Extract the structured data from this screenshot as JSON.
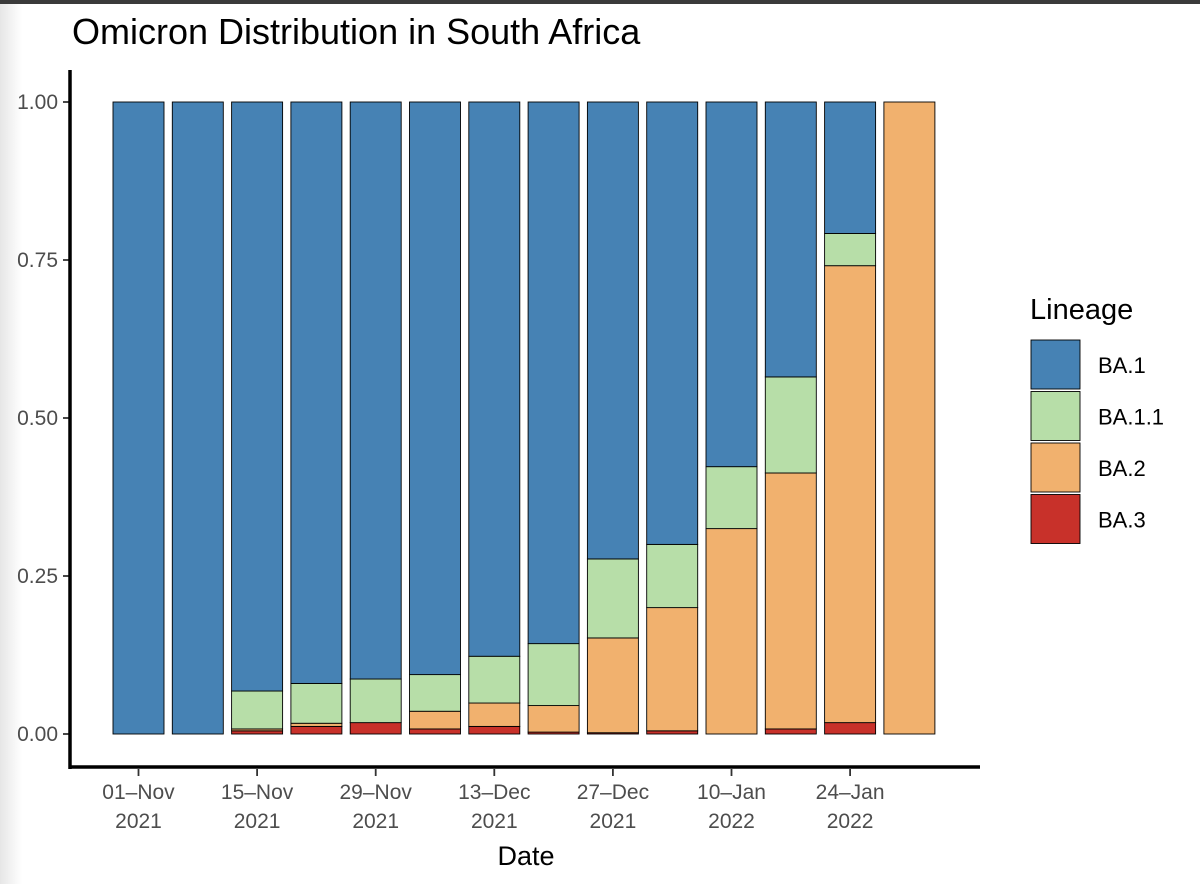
{
  "chart_data": {
    "type": "bar",
    "stacked": true,
    "title": "Omicron Distribution in South Africa",
    "xlabel": "Date",
    "ylabel": "",
    "ylim": [
      0,
      1
    ],
    "y_ticks": [
      "0.00",
      "0.25",
      "0.50",
      "0.75",
      "1.00"
    ],
    "y_tick_values": [
      0,
      0.25,
      0.5,
      0.75,
      1.0
    ],
    "x_tick_labels": [
      {
        "line1": "01–Nov",
        "line2": "2021",
        "category_index": 0
      },
      {
        "line1": "15–Nov",
        "line2": "2021",
        "category_index": 2
      },
      {
        "line1": "29–Nov",
        "line2": "2021",
        "category_index": 4
      },
      {
        "line1": "13–Dec",
        "line2": "2021",
        "category_index": 6
      },
      {
        "line1": "27–Dec",
        "line2": "2021",
        "category_index": 8
      },
      {
        "line1": "10–Jan",
        "line2": "2022",
        "category_index": 10
      },
      {
        "line1": "24–Jan",
        "line2": "2022",
        "category_index": 12
      }
    ],
    "categories": [
      "2021-11-01",
      "2021-11-08",
      "2021-11-15",
      "2021-11-22",
      "2021-11-29",
      "2021-12-06",
      "2021-12-13",
      "2021-12-20",
      "2021-12-27",
      "2022-01-03",
      "2022-01-10",
      "2022-01-17",
      "2022-01-24",
      "2022-01-31"
    ],
    "series": [
      {
        "name": "BA.3",
        "color": "#c8312a",
        "values": [
          0,
          0,
          0.005,
          0.012,
          0.018,
          0.008,
          0.012,
          0.003,
          0.002,
          0.005,
          0,
          0.008,
          0.018,
          0
        ]
      },
      {
        "name": "BA.2",
        "color": "#f1b16e",
        "values": [
          0,
          0,
          0.003,
          0.005,
          0,
          0.028,
          0.037,
          0.042,
          0.15,
          0.195,
          0.325,
          0.405,
          0.723,
          1.0
        ]
      },
      {
        "name": "BA.1.1",
        "color": "#b7dea8",
        "values": [
          0,
          0,
          0.06,
          0.063,
          0.069,
          0.058,
          0.074,
          0.098,
          0.125,
          0.1,
          0.098,
          0.152,
          0.051,
          0
        ]
      },
      {
        "name": "BA.1",
        "color": "#4682b4",
        "values": [
          1.0,
          1.0,
          0.932,
          0.92,
          0.913,
          0.906,
          0.877,
          0.857,
          0.723,
          0.7,
          0.577,
          0.435,
          0.208,
          0
        ]
      }
    ],
    "legend": {
      "title": "Lineage",
      "position": "right",
      "order": [
        "BA.1",
        "BA.1.1",
        "BA.2",
        "BA.3"
      ]
    }
  }
}
